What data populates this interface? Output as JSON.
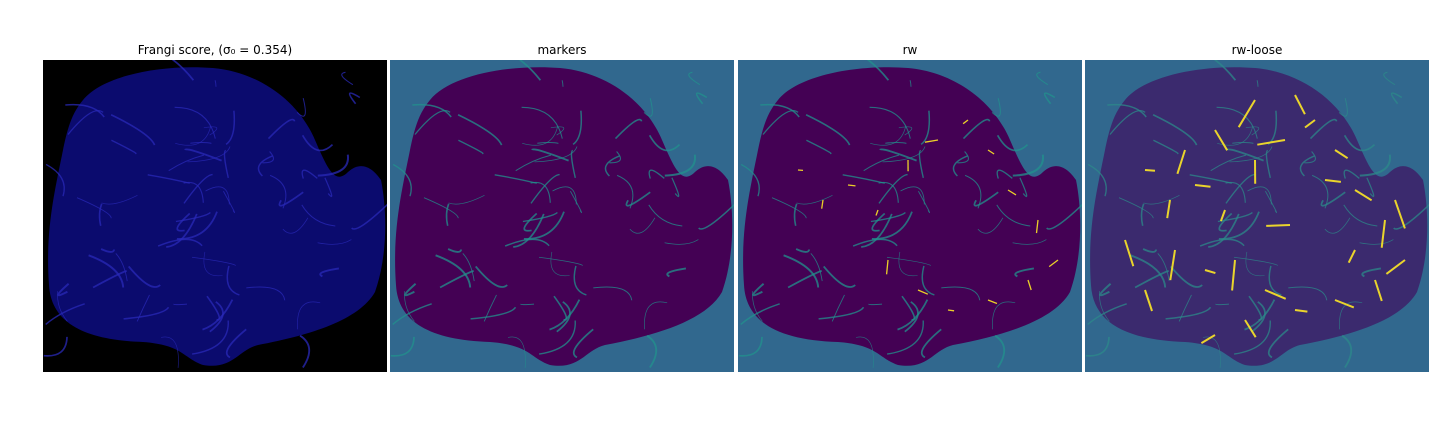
{
  "panels": [
    {
      "title": "Frangi score, (σ₀ = 0.354)",
      "background": "#000000",
      "fill": "#0b0b6e",
      "vessel": "#2a2ab8",
      "hot": null
    },
    {
      "title": "markers",
      "background": "#31688e",
      "fill": "#440154",
      "vessel": "#21918c",
      "hot": null
    },
    {
      "title": "rw",
      "background": "#31688e",
      "fill": "#440154",
      "vessel": "#21918c",
      "hot": "#fde725"
    },
    {
      "title": "rw-loose",
      "background": "#31688e",
      "fill": "#3b2a6e",
      "vessel": "#2c8a8a",
      "hot": "#fde725"
    }
  ]
}
